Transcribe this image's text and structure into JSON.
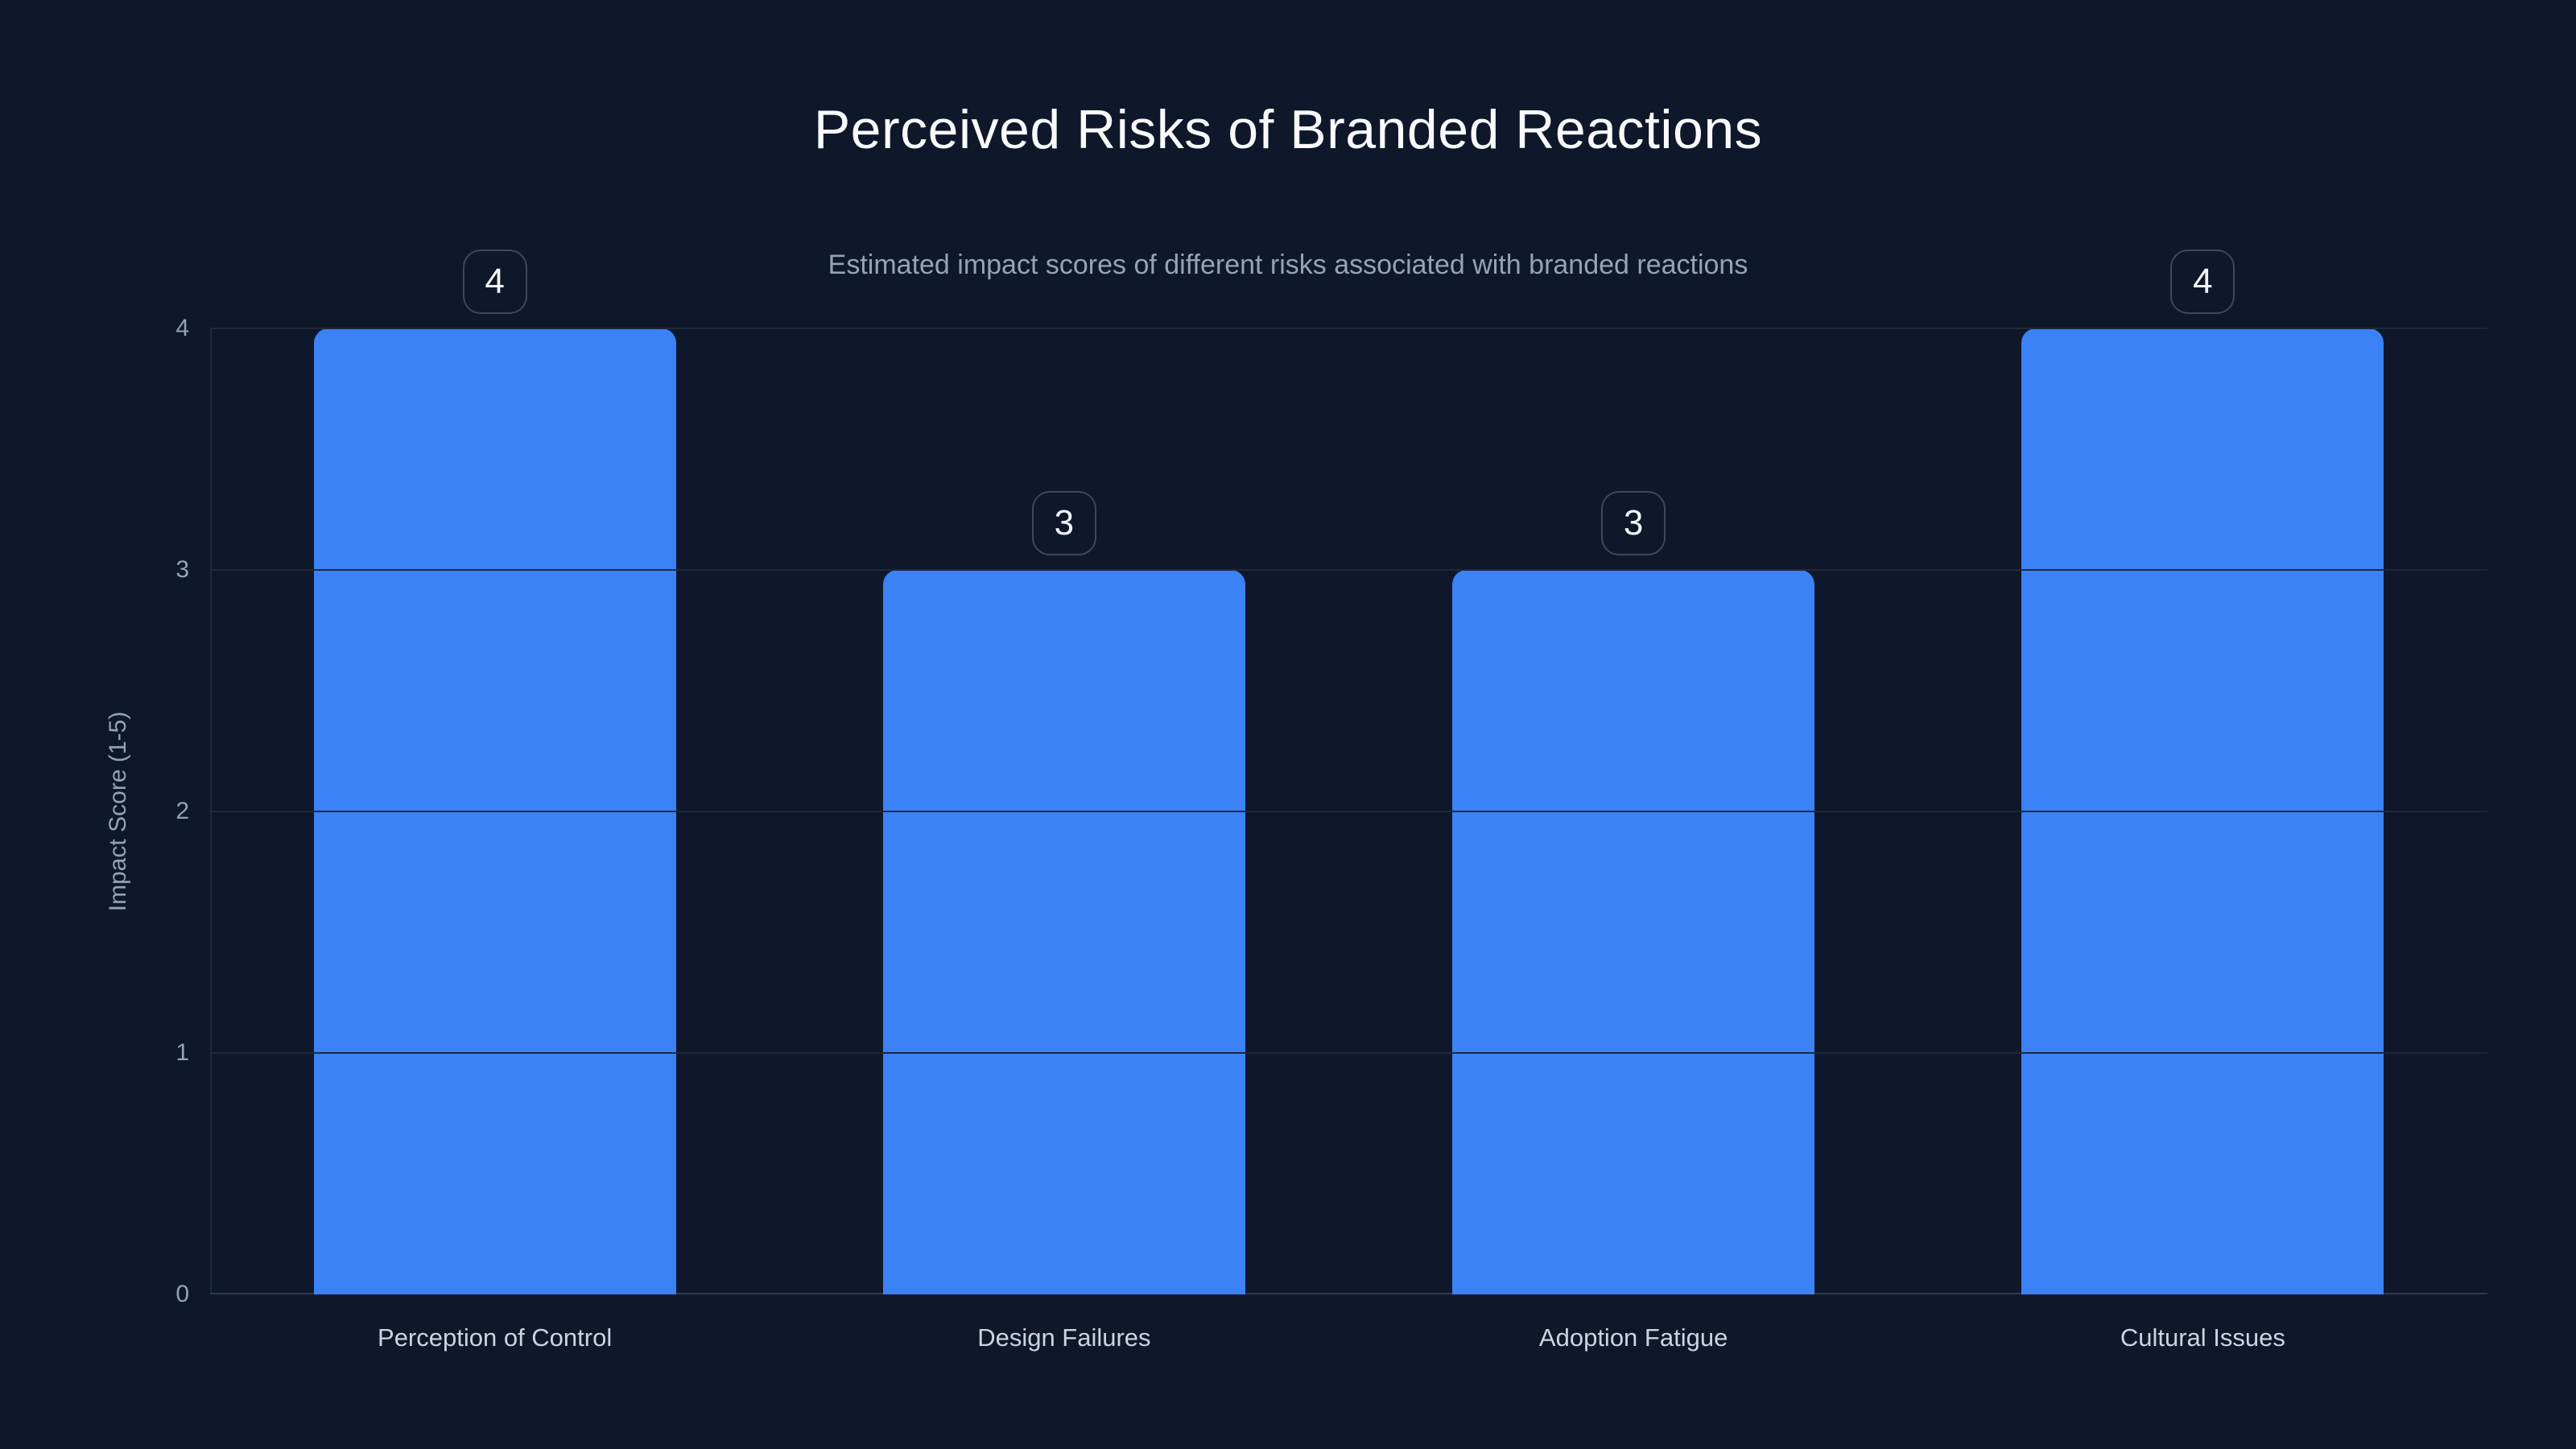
{
  "chart_data": {
    "type": "bar",
    "title": "Perceived Risks of Branded Reactions",
    "subtitle": "Estimated impact scores of different risks associated with branded reactions",
    "xlabel": "",
    "ylabel": "Impact Score (1-5)",
    "categories": [
      "Perception of Control",
      "Design Failures",
      "Adoption Fatigue",
      "Cultural Issues"
    ],
    "values": [
      4,
      3,
      3,
      4
    ],
    "data_labels": [
      "4",
      "3",
      "3",
      "4"
    ],
    "ylim": [
      0,
      4
    ],
    "yticks": [
      0,
      1,
      2,
      3,
      4
    ],
    "grid": true,
    "legend": false,
    "colors": {
      "background": "#0f172a",
      "bar": "#3b82f6",
      "title_text": "#f8fafc",
      "subtitle_text": "#94a3b8",
      "tick_text": "#94a3b8",
      "category_text": "#cbd5e1",
      "badge_text": "#f1f5f9",
      "badge_border": "#3d485e",
      "gridline": "#1e293b",
      "axis_line": "#2e3b55"
    }
  }
}
